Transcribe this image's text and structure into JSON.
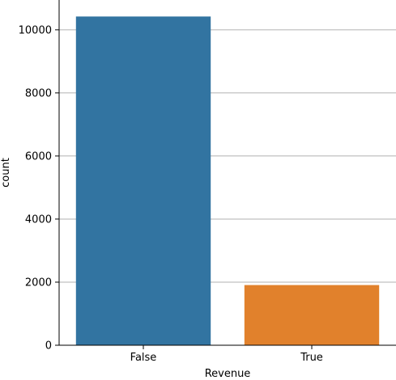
{
  "chart_data": {
    "type": "bar",
    "categories": [
      "False",
      "True"
    ],
    "values": [
      10422,
      1908
    ],
    "xlabel": "Revenue",
    "ylabel": "count",
    "ylim": [
      0,
      10945
    ],
    "yticks": [
      0,
      2000,
      4000,
      6000,
      8000,
      10000
    ],
    "grid": "horizontal",
    "colors": [
      "#3274a1",
      "#e1812c"
    ],
    "grid_color": "#b0b0b0",
    "axis_color": "#000000"
  }
}
